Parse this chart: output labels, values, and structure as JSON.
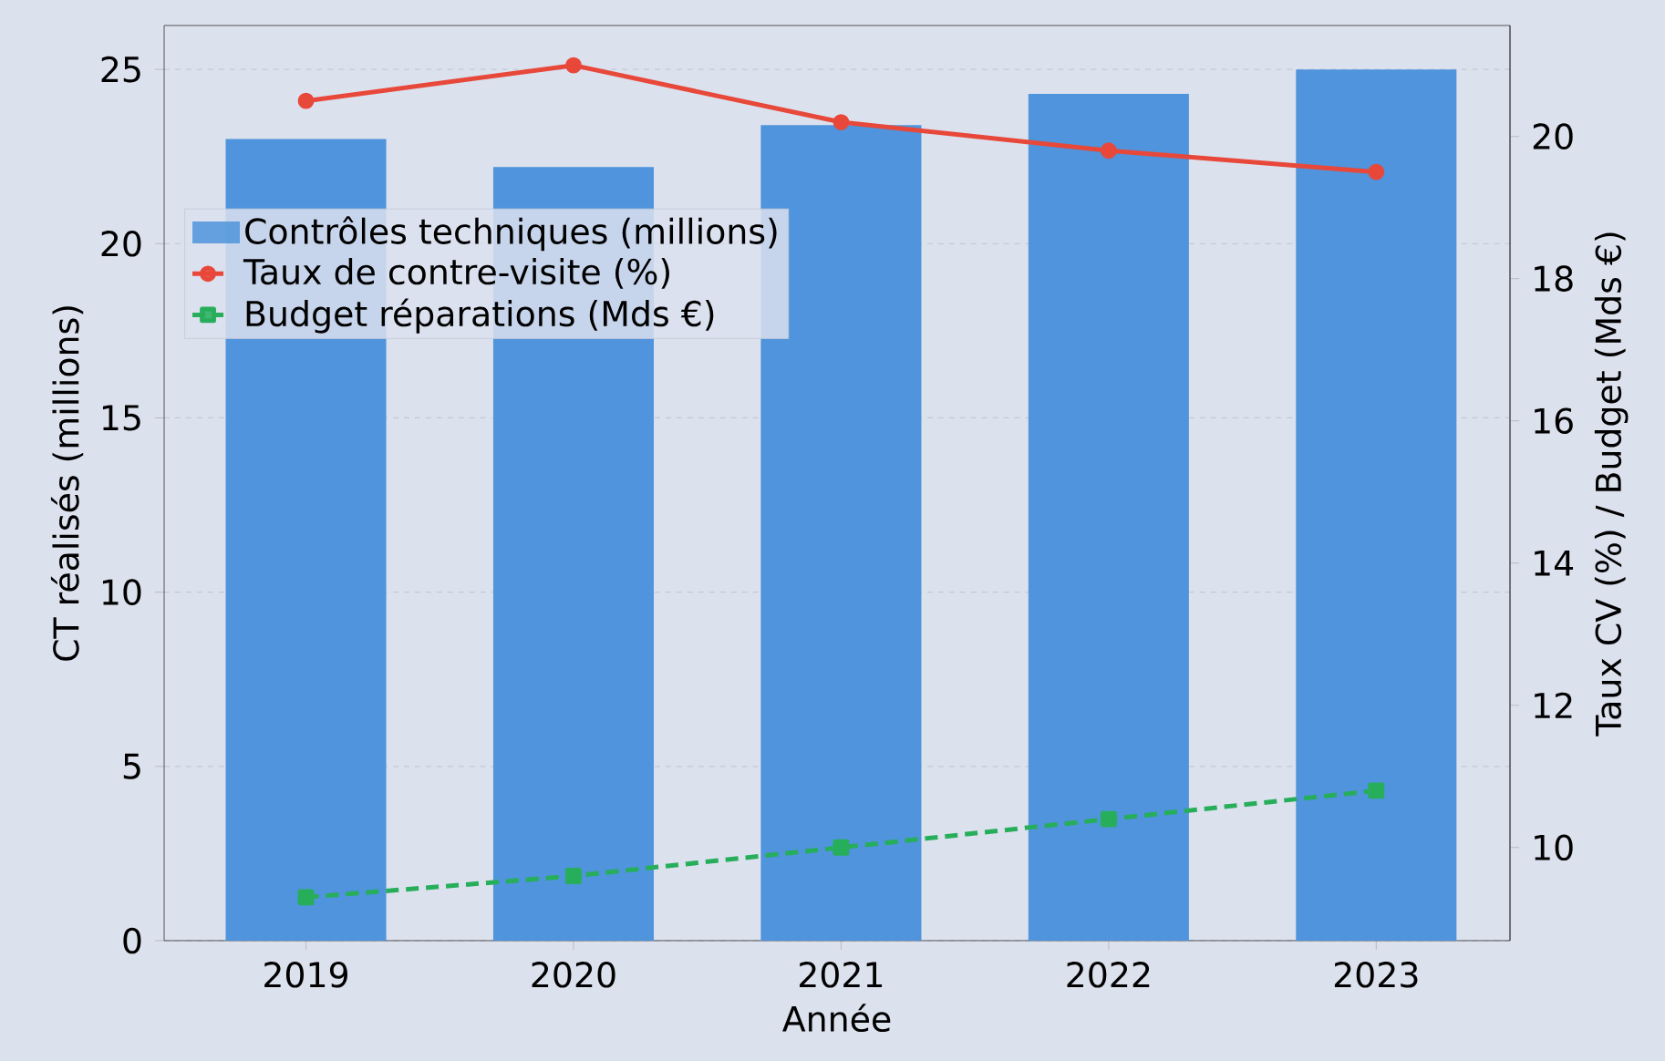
{
  "chart_data": {
    "type": "bar",
    "xlabel": "Année",
    "ylabel": "CT réalisés (millions)",
    "y2label": "Taux CV (%) / Budget (Mds €)",
    "categories": [
      "2019",
      "2020",
      "2021",
      "2022",
      "2023"
    ],
    "series": [
      {
        "name": "Contrôles techniques (millions)",
        "color": "#4f94dc",
        "values": [
          23.0,
          22.2,
          23.4,
          24.3,
          25.0
        ]
      },
      {
        "name": "Taux de contre-visite (%)",
        "type": "line",
        "axis": "y2",
        "color": "#e8483a",
        "marker": "circle",
        "line_style": "solid",
        "values": [
          20.5,
          21.0,
          20.2,
          19.8,
          19.5
        ]
      },
      {
        "name": "Budget réparations (Mds €)",
        "type": "line",
        "axis": "y2",
        "color": "#27ae5b",
        "marker": "square",
        "line_style": "dashed",
        "values": [
          9.3,
          9.6,
          10.0,
          10.4,
          10.8
        ]
      }
    ],
    "ylim": [
      0,
      26.26
    ],
    "yticks": [
      0,
      5,
      10,
      15,
      20,
      25
    ],
    "y2lim": [
      8.69,
      21.56
    ],
    "y2ticks": [
      10,
      12,
      14,
      16,
      18,
      20
    ],
    "grid": "y",
    "legend": "top left"
  }
}
